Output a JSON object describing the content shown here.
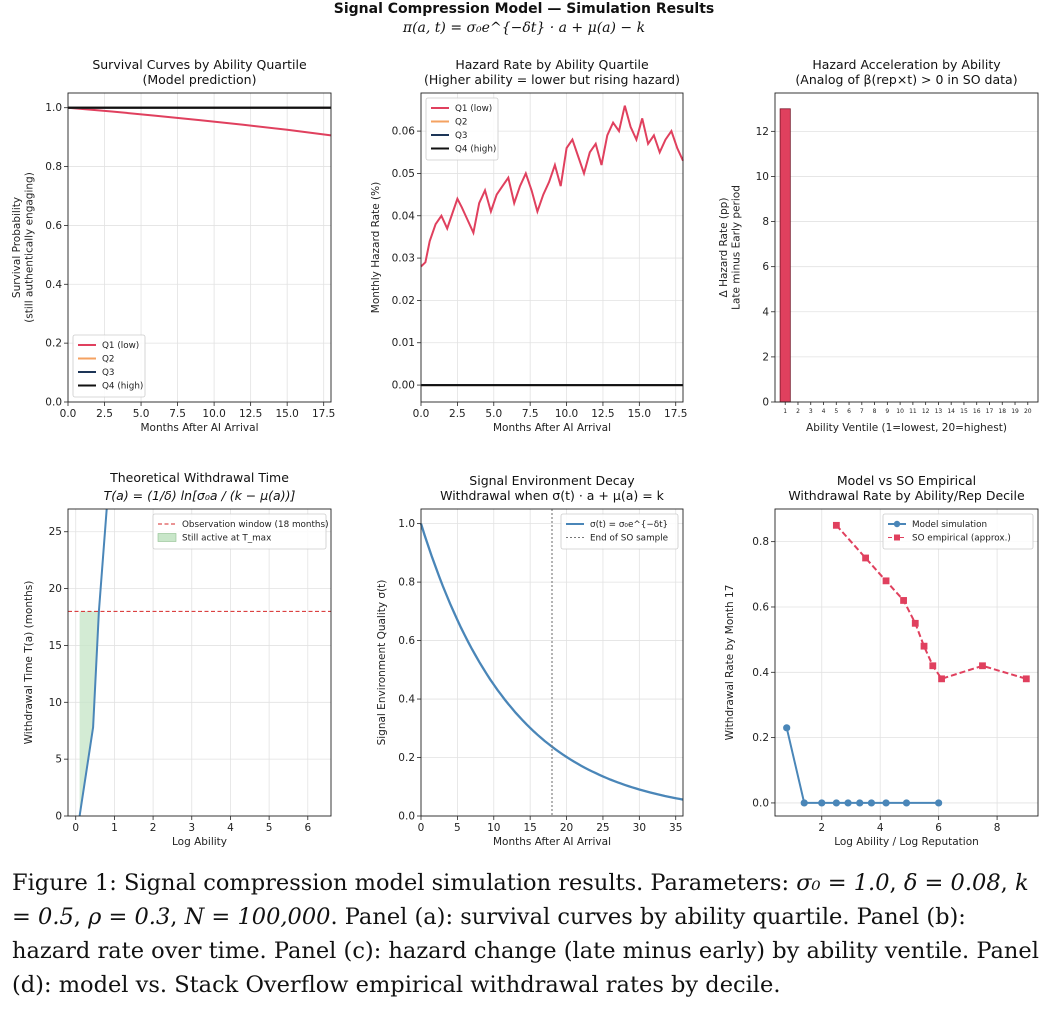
{
  "figure": {
    "title": "Signal Compression Model — Simulation Results",
    "equation": "π(a, t) = σ₀e^{−δt} · a + μ(a) − k",
    "caption": {
      "p1": "Figure 1: Signal compression model simulation results. Parameters: ",
      "sigma": "σ₀ = 1.0",
      "delta": "δ = 0.08",
      "k": "k = 0.5",
      "rho": "ρ = 0.3",
      "N": "N = 100,000",
      "p2": ". Panel (a): survival curves by ability quartile. Panel (b): hazard rate over time. Panel (c): hazard change (late minus early) by ability ventile. Panel (d): model vs. Stack Overflow empirical withdrawal rates by decile."
    }
  },
  "chart_data": [
    {
      "id": "survival",
      "type": "line",
      "title": "Survival Curves by Ability Quartile",
      "subtitle": "(Model prediction)",
      "xlabel": "Months After AI Arrival",
      "ylabel": "Survival Probability\n(still authentically engaging)",
      "xlim": [
        0,
        18
      ],
      "ylim": [
        0,
        1.05
      ],
      "xticks": [
        "0.0",
        "2.5",
        "5.0",
        "7.5",
        "10.0",
        "12.5",
        "15.0",
        "17.5"
      ],
      "xtick_values": [
        0,
        2.5,
        5,
        7.5,
        10,
        12.5,
        15,
        17.5
      ],
      "yticks": [
        "0.0",
        "0.2",
        "0.4",
        "0.6",
        "0.8",
        "1.0"
      ],
      "ytick_values": [
        0,
        0.2,
        0.4,
        0.6,
        0.8,
        1.0
      ],
      "grid": true,
      "legend": "lower left",
      "series": [
        {
          "name": "Q1 (low)",
          "color": "#e0405e",
          "x": [
            0,
            3,
            6,
            9,
            12,
            15,
            18
          ],
          "y": [
            1.0,
            0.987,
            0.973,
            0.958,
            0.942,
            0.925,
            0.906
          ]
        },
        {
          "name": "Q2",
          "color": "#f4a261",
          "x": [
            0,
            18
          ],
          "y": [
            1.0,
            1.0
          ]
        },
        {
          "name": "Q3",
          "color": "#1d3557",
          "x": [
            0,
            18
          ],
          "y": [
            1.0,
            1.0
          ]
        },
        {
          "name": "Q4 (high)",
          "color": "#111111",
          "x": [
            0,
            18
          ],
          "y": [
            1.0,
            1.0
          ]
        }
      ]
    },
    {
      "id": "hazard",
      "type": "line",
      "title": "Hazard Rate by Ability Quartile",
      "subtitle": "(Higher ability = lower but rising hazard)",
      "xlabel": "Months After AI Arrival",
      "ylabel": "Monthly Hazard Rate (%)",
      "xlim": [
        0,
        18
      ],
      "ylim": [
        -0.004,
        0.069
      ],
      "xticks": [
        "0.0",
        "2.5",
        "5.0",
        "7.5",
        "10.0",
        "12.5",
        "15.0",
        "17.5"
      ],
      "xtick_values": [
        0,
        2.5,
        5,
        7.5,
        10,
        12.5,
        15,
        17.5
      ],
      "yticks": [
        "0.00",
        "0.01",
        "0.02",
        "0.03",
        "0.04",
        "0.05",
        "0.06"
      ],
      "ytick_values": [
        0,
        0.01,
        0.02,
        0.03,
        0.04,
        0.05,
        0.06
      ],
      "grid": true,
      "legend": "upper left",
      "series": [
        {
          "name": "Q1 (low)",
          "color": "#e0405e",
          "x": [
            0,
            0.3,
            0.6,
            1,
            1.4,
            1.8,
            2.2,
            2.5,
            2.8,
            3.2,
            3.6,
            4,
            4.4,
            4.8,
            5.2,
            5.6,
            6,
            6.4,
            6.8,
            7.2,
            7.6,
            8,
            8.4,
            8.8,
            9.2,
            9.6,
            10,
            10.4,
            10.8,
            11.2,
            11.6,
            12,
            12.4,
            12.8,
            13.2,
            13.6,
            14,
            14.4,
            14.8,
            15.2,
            15.6,
            16,
            16.4,
            16.8,
            17.2,
            17.6,
            18
          ],
          "y": [
            0.028,
            0.029,
            0.034,
            0.038,
            0.04,
            0.037,
            0.041,
            0.044,
            0.042,
            0.039,
            0.036,
            0.043,
            0.046,
            0.041,
            0.045,
            0.047,
            0.049,
            0.043,
            0.047,
            0.05,
            0.046,
            0.041,
            0.045,
            0.048,
            0.052,
            0.047,
            0.056,
            0.058,
            0.054,
            0.05,
            0.055,
            0.057,
            0.052,
            0.059,
            0.062,
            0.06,
            0.066,
            0.061,
            0.058,
            0.063,
            0.057,
            0.059,
            0.055,
            0.058,
            0.06,
            0.056,
            0.053
          ]
        },
        {
          "name": "Q2",
          "color": "#f4a261",
          "x": [
            0,
            18
          ],
          "y": [
            0,
            0
          ]
        },
        {
          "name": "Q3",
          "color": "#1d3557",
          "x": [
            0,
            18
          ],
          "y": [
            0,
            0
          ]
        },
        {
          "name": "Q4 (high)",
          "color": "#111111",
          "x": [
            0,
            18
          ],
          "y": [
            0,
            0
          ]
        }
      ]
    },
    {
      "id": "acceleration",
      "type": "bar",
      "title": "Hazard Acceleration by Ability",
      "subtitle": "(Analog of β(rep×t) > 0 in SO data)",
      "xlabel": "Ability Ventile (1=lowest, 20=highest)",
      "ylabel": "Δ Hazard Rate (pp)\nLate minus Early period",
      "ylim": [
        0,
        13.7
      ],
      "categories": [
        "1",
        "2",
        "3",
        "4",
        "5",
        "6",
        "7",
        "8",
        "9",
        "10",
        "11",
        "12",
        "13",
        "14",
        "15",
        "16",
        "17",
        "18",
        "19",
        "20"
      ],
      "values": [
        13,
        0,
        0,
        0,
        0,
        0,
        0,
        0,
        0,
        0,
        0,
        0,
        0,
        0,
        0,
        0,
        0,
        0,
        0,
        0
      ],
      "yticks": [
        "0",
        "2",
        "4",
        "6",
        "8",
        "10",
        "12"
      ],
      "ytick_values": [
        0,
        2,
        4,
        6,
        8,
        10,
        12
      ],
      "color": "#e0405e",
      "grid": true
    },
    {
      "id": "withdrawal",
      "type": "line",
      "title": "Theoretical Withdrawal Time",
      "subtitle": "T(a) = (1/δ) ln[σ₀a / (k − μ(a))]",
      "xlabel": "Log Ability",
      "ylabel": "Withdrawal Time T(a) (months)",
      "xlim": [
        -0.2,
        6.6
      ],
      "ylim": [
        0,
        27
      ],
      "xticks": [
        "0",
        "1",
        "2",
        "3",
        "4",
        "5",
        "6"
      ],
      "xtick_values": [
        0,
        1,
        2,
        3,
        4,
        5,
        6
      ],
      "yticks": [
        "0",
        "5",
        "10",
        "15",
        "20",
        "25"
      ],
      "ytick_values": [
        0,
        5,
        10,
        15,
        20,
        25
      ],
      "grid": true,
      "legend": "upper right",
      "series": [
        {
          "name": "T(a)",
          "color": "#4a86b8",
          "x": [
            0.1,
            0.45,
            0.6,
            0.8
          ],
          "y": [
            0,
            7.8,
            18,
            27
          ]
        }
      ],
      "hline": {
        "y": 18,
        "name": "Observation window (18 months)",
        "color": "#d62728"
      },
      "fill": {
        "name": "Still active at T_max",
        "color": "#c8e6c9",
        "x": [
          0.1,
          0.6
        ],
        "y_top": 18
      }
    },
    {
      "id": "decay",
      "type": "line",
      "title": "Signal Environment Decay",
      "subtitle": "Withdrawal when σ(t) · a + μ(a) = k",
      "xlabel": "Months After AI Arrival",
      "ylabel": "Signal Environment Quality σ(t)",
      "xlim": [
        0,
        36
      ],
      "ylim": [
        0,
        1.05
      ],
      "xticks": [
        "0",
        "5",
        "10",
        "15",
        "20",
        "25",
        "30",
        "35"
      ],
      "xtick_values": [
        0,
        5,
        10,
        15,
        20,
        25,
        30,
        35
      ],
      "yticks": [
        "0.0",
        "0.2",
        "0.4",
        "0.6",
        "0.8",
        "1.0"
      ],
      "ytick_values": [
        0,
        0.2,
        0.4,
        0.6,
        0.8,
        1.0
      ],
      "grid": true,
      "legend": "upper right",
      "series": [
        {
          "name": "σ(t) = σ₀e^{−δt}",
          "color": "#4a86b8",
          "decay_rate": 0.08
        }
      ],
      "vline": {
        "x": 18,
        "name": "End of SO sample",
        "color": "#777777"
      }
    },
    {
      "id": "empirical",
      "type": "line",
      "title": "Model vs SO Empirical",
      "subtitle": "Withdrawal Rate by Ability/Rep Decile",
      "xlabel": "Log Ability / Log Reputation",
      "ylabel": "Withdrawal Rate by Month 17",
      "xlim": [
        0.4,
        9.4
      ],
      "ylim": [
        -0.04,
        0.9
      ],
      "xticks": [
        "2",
        "4",
        "6",
        "8"
      ],
      "xtick_values": [
        2,
        4,
        6,
        8
      ],
      "yticks": [
        "0.0",
        "0.2",
        "0.4",
        "0.6",
        "0.8"
      ],
      "ytick_values": [
        0,
        0.2,
        0.4,
        0.6,
        0.8
      ],
      "grid": true,
      "legend": "upper right",
      "series": [
        {
          "name": "Model simulation",
          "color": "#4a86b8",
          "marker": "circle",
          "x": [
            0.8,
            1.4,
            2.0,
            2.5,
            2.9,
            3.3,
            3.7,
            4.2,
            4.9,
            6.0
          ],
          "y": [
            0.23,
            0,
            0,
            0,
            0,
            0,
            0,
            0,
            0,
            0
          ]
        },
        {
          "name": "SO empirical (approx.)",
          "color": "#e0405e",
          "marker": "square",
          "dash": true,
          "x": [
            2.5,
            3.5,
            4.2,
            4.8,
            5.2,
            5.5,
            5.8,
            6.1,
            7.5,
            9.0
          ],
          "y": [
            0.85,
            0.75,
            0.68,
            0.62,
            0.55,
            0.48,
            0.42,
            0.38,
            0.42,
            0.38
          ]
        }
      ]
    }
  ]
}
